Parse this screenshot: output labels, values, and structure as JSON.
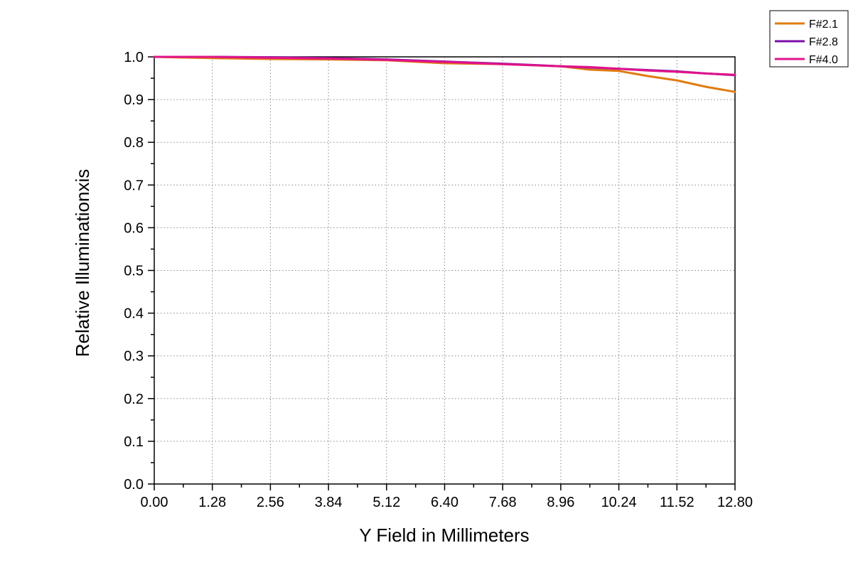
{
  "chart_data": {
    "type": "line",
    "xlabel": "Y Field in Millimeters",
    "ylabel": "Relative Illuminationxis",
    "xlim": [
      0,
      12.8
    ],
    "ylim": [
      0,
      1.0
    ],
    "x_ticks": [
      "0.00",
      "1.28",
      "2.56",
      "3.84",
      "5.12",
      "6.40",
      "7.68",
      "8.96",
      "10.24",
      "11.52",
      "12.80"
    ],
    "y_ticks": [
      "0.0",
      "0.1",
      "0.2",
      "0.3",
      "0.4",
      "0.5",
      "0.6",
      "0.7",
      "0.8",
      "0.9",
      "1.0"
    ],
    "grid": true,
    "legend_position": "top-right",
    "x": [
      0,
      1.28,
      2.56,
      3.84,
      5.12,
      6.4,
      7.68,
      8.96,
      9.6,
      10.24,
      10.88,
      11.52,
      12.16,
      12.8
    ],
    "series": [
      {
        "name": "F#2.1",
        "color": "#E07B10",
        "values": [
          1.0,
          0.997,
          0.995,
          0.994,
          0.992,
          0.985,
          0.983,
          0.978,
          0.97,
          0.967,
          0.955,
          0.945,
          0.93,
          0.918
        ]
      },
      {
        "name": "F#2.8",
        "color": "#7B0FA8",
        "values": [
          1.0,
          1.0,
          0.999,
          0.997,
          0.994,
          0.989,
          0.984,
          0.978,
          0.975,
          0.972,
          0.969,
          0.966,
          0.961,
          0.957
        ]
      },
      {
        "name": "F#4.0",
        "color": "#E0138A",
        "values": [
          1.0,
          1.0,
          0.998,
          0.996,
          0.993,
          0.988,
          0.983,
          0.978,
          0.976,
          0.972,
          0.968,
          0.965,
          0.961,
          0.958
        ]
      }
    ]
  }
}
